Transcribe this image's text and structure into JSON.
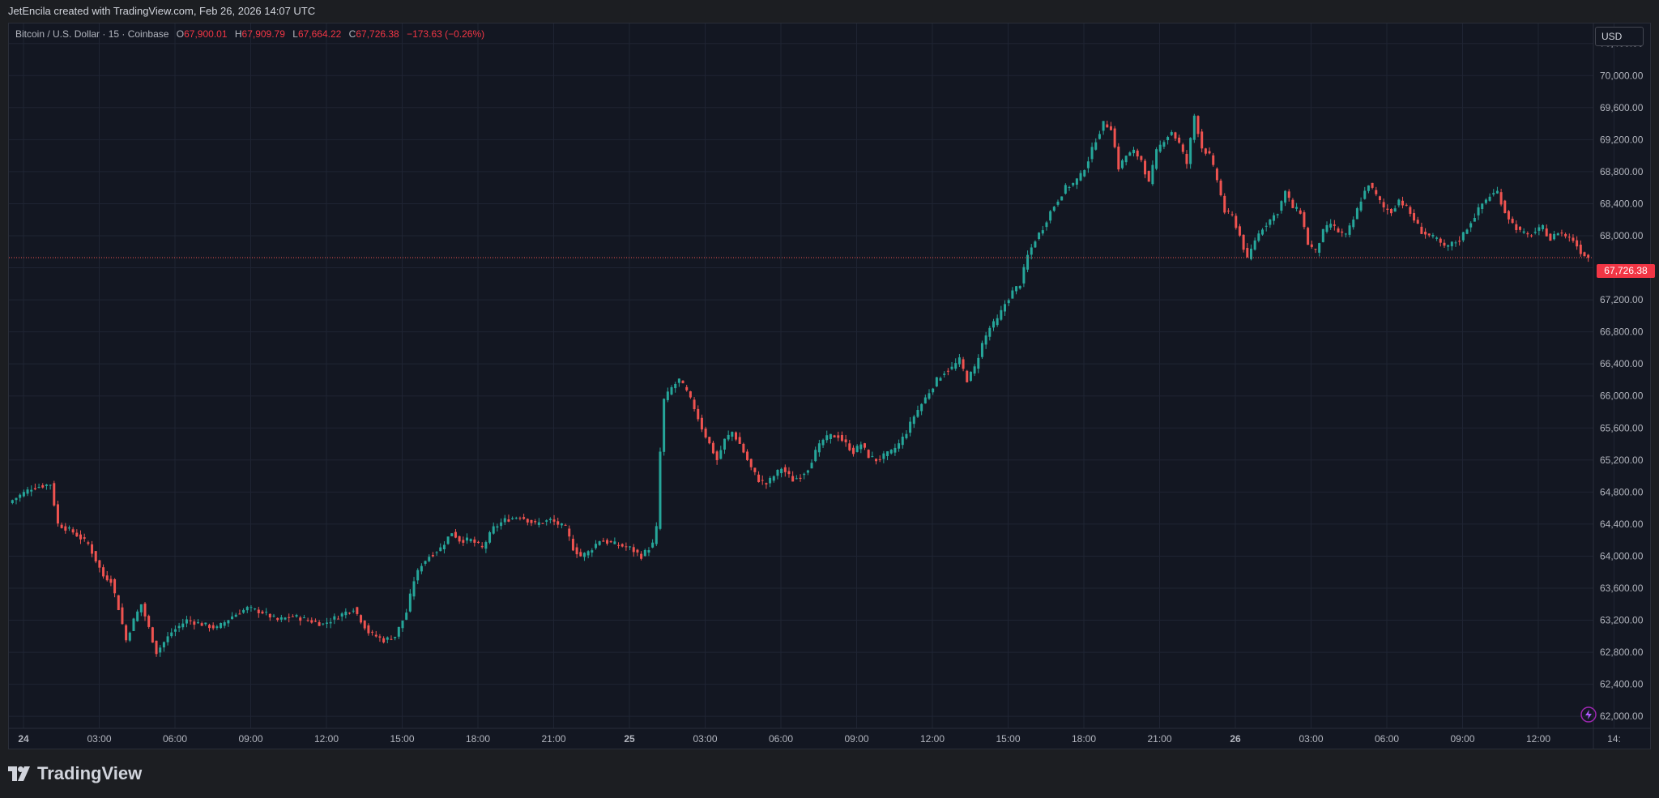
{
  "header": {
    "attribution": "JetEncila created with TradingView.com, Feb 26, 2026 14:07 UTC"
  },
  "legend": {
    "symbol": "Bitcoin / U.S. Dollar · 15 · Coinbase",
    "open_label": "O",
    "open": "67,900.01",
    "high_label": "H",
    "high": "67,909.79",
    "low_label": "L",
    "low": "67,664.22",
    "close_label": "C",
    "close": "67,726.38",
    "change": "−173.63 (−0.26%)"
  },
  "currency": "USD",
  "last_price_tag": "67,726.38",
  "brand": {
    "name": "TradingView"
  },
  "colors": {
    "up": "#26a69a",
    "down": "#ef5350",
    "background": "#131722",
    "grid": "#1f2433",
    "axis_text": "#b2b5be"
  },
  "chart_data": {
    "type": "candlestick",
    "interval": "15",
    "y_ticks": [
      "70,400.00",
      "70,000.00",
      "69,600.00",
      "69,200.00",
      "68,800.00",
      "68,400.00",
      "68,000.00",
      "67,600.00",
      "67,200.00",
      "66,800.00",
      "66,400.00",
      "66,000.00",
      "65,600.00",
      "65,200.00",
      "64,800.00",
      "64,400.00",
      "64,000.00",
      "63,600.00",
      "63,200.00",
      "62,800.00",
      "62,400.00",
      "62,000.00"
    ],
    "ylim": [
      61850,
      70650
    ],
    "x_ticks": [
      "24",
      "03:00",
      "06:00",
      "09:00",
      "12:00",
      "15:00",
      "18:00",
      "21:00",
      "25",
      "03:00",
      "06:00",
      "09:00",
      "12:00",
      "15:00",
      "18:00",
      "21:00",
      "26",
      "03:00",
      "06:00",
      "09:00",
      "12:00",
      "14:"
    ],
    "last_price": 67726.38,
    "close_path": [
      [
        0,
        64700
      ],
      [
        5,
        64850
      ],
      [
        10,
        64900
      ],
      [
        12,
        64400
      ],
      [
        16,
        64300
      ],
      [
        20,
        64150
      ],
      [
        24,
        63750
      ],
      [
        26,
        63700
      ],
      [
        28,
        63350
      ],
      [
        30,
        62950
      ],
      [
        32,
        63200
      ],
      [
        34,
        63400
      ],
      [
        36,
        63100
      ],
      [
        38,
        62800
      ],
      [
        42,
        63050
      ],
      [
        46,
        63200
      ],
      [
        50,
        63150
      ],
      [
        54,
        63100
      ],
      [
        58,
        63250
      ],
      [
        62,
        63350
      ],
      [
        66,
        63300
      ],
      [
        70,
        63200
      ],
      [
        74,
        63250
      ],
      [
        78,
        63200
      ],
      [
        82,
        63150
      ],
      [
        86,
        63250
      ],
      [
        90,
        63350
      ],
      [
        94,
        63050
      ],
      [
        98,
        62950
      ],
      [
        101,
        63000
      ],
      [
        104,
        63300
      ],
      [
        106,
        63700
      ],
      [
        108,
        63900
      ],
      [
        110,
        64000
      ],
      [
        113,
        64100
      ],
      [
        116,
        64300
      ],
      [
        118,
        64200
      ],
      [
        121,
        64200
      ],
      [
        124,
        64100
      ],
      [
        127,
        64350
      ],
      [
        130,
        64450
      ],
      [
        134,
        64500
      ],
      [
        138,
        64400
      ],
      [
        142,
        64450
      ],
      [
        146,
        64350
      ],
      [
        148,
        64100
      ],
      [
        150,
        64000
      ],
      [
        152,
        64050
      ],
      [
        155,
        64200
      ],
      [
        159,
        64150
      ],
      [
        163,
        64100
      ],
      [
        166,
        64000
      ],
      [
        169,
        64150
      ],
      [
        170,
        64350
      ],
      [
        171,
        65300
      ],
      [
        172,
        65950
      ],
      [
        174,
        66100
      ],
      [
        176,
        66200
      ],
      [
        178,
        66050
      ],
      [
        180,
        65850
      ],
      [
        182,
        65600
      ],
      [
        184,
        65400
      ],
      [
        186,
        65200
      ],
      [
        188,
        65450
      ],
      [
        190,
        65550
      ],
      [
        192,
        65400
      ],
      [
        195,
        65100
      ],
      [
        197,
        64950
      ],
      [
        199,
        64900
      ],
      [
        201,
        65000
      ],
      [
        203,
        65100
      ],
      [
        206,
        64950
      ],
      [
        208,
        65000
      ],
      [
        210,
        65100
      ],
      [
        212,
        65300
      ],
      [
        214,
        65450
      ],
      [
        216,
        65500
      ],
      [
        218,
        65500
      ],
      [
        220,
        65400
      ],
      [
        222,
        65300
      ],
      [
        224,
        65400
      ],
      [
        226,
        65250
      ],
      [
        228,
        65200
      ],
      [
        230,
        65250
      ],
      [
        232,
        65300
      ],
      [
        234,
        65400
      ],
      [
        236,
        65550
      ],
      [
        238,
        65750
      ],
      [
        240,
        65900
      ],
      [
        242,
        66050
      ],
      [
        244,
        66200
      ],
      [
        246,
        66300
      ],
      [
        248,
        66350
      ],
      [
        250,
        66450
      ],
      [
        252,
        66200
      ],
      [
        254,
        66350
      ],
      [
        256,
        66650
      ],
      [
        258,
        66850
      ],
      [
        260,
        66950
      ],
      [
        262,
        67150
      ],
      [
        264,
        67300
      ],
      [
        266,
        67400
      ],
      [
        268,
        67750
      ],
      [
        270,
        67950
      ],
      [
        272,
        68100
      ],
      [
        274,
        68300
      ],
      [
        276,
        68450
      ],
      [
        278,
        68600
      ],
      [
        280,
        68650
      ],
      [
        282,
        68750
      ],
      [
        284,
        68950
      ],
      [
        286,
        69200
      ],
      [
        288,
        69400
      ],
      [
        290,
        69350
      ],
      [
        292,
        68850
      ],
      [
        294,
        69000
      ],
      [
        296,
        69050
      ],
      [
        298,
        68950
      ],
      [
        300,
        68650
      ],
      [
        302,
        69050
      ],
      [
        304,
        69200
      ],
      [
        306,
        69300
      ],
      [
        308,
        69150
      ],
      [
        310,
        68900
      ],
      [
        312,
        69500
      ],
      [
        314,
        69100
      ],
      [
        316,
        69000
      ],
      [
        318,
        68700
      ],
      [
        320,
        68300
      ],
      [
        322,
        68250
      ],
      [
        324,
        68000
      ],
      [
        326,
        67700
      ],
      [
        328,
        67950
      ],
      [
        330,
        68100
      ],
      [
        332,
        68200
      ],
      [
        334,
        68300
      ],
      [
        336,
        68550
      ],
      [
        338,
        68350
      ],
      [
        340,
        68300
      ],
      [
        342,
        67900
      ],
      [
        344,
        67800
      ],
      [
        346,
        68050
      ],
      [
        348,
        68150
      ],
      [
        350,
        68050
      ],
      [
        352,
        68000
      ],
      [
        354,
        68200
      ],
      [
        356,
        68450
      ],
      [
        358,
        68650
      ],
      [
        360,
        68500
      ],
      [
        362,
        68350
      ],
      [
        364,
        68300
      ],
      [
        366,
        68450
      ],
      [
        368,
        68350
      ],
      [
        370,
        68200
      ],
      [
        372,
        68050
      ],
      [
        374,
        68000
      ],
      [
        376,
        67950
      ],
      [
        378,
        67850
      ],
      [
        380,
        67900
      ],
      [
        382,
        67950
      ],
      [
        384,
        68100
      ],
      [
        386,
        68250
      ],
      [
        388,
        68400
      ],
      [
        390,
        68500
      ],
      [
        392,
        68550
      ],
      [
        394,
        68300
      ],
      [
        396,
        68150
      ],
      [
        398,
        68050
      ],
      [
        400,
        68000
      ],
      [
        402,
        68050
      ],
      [
        404,
        68100
      ],
      [
        406,
        67950
      ],
      [
        408,
        68050
      ],
      [
        410,
        68000
      ],
      [
        412,
        67950
      ],
      [
        414,
        67800
      ],
      [
        416,
        67726
      ]
    ]
  }
}
